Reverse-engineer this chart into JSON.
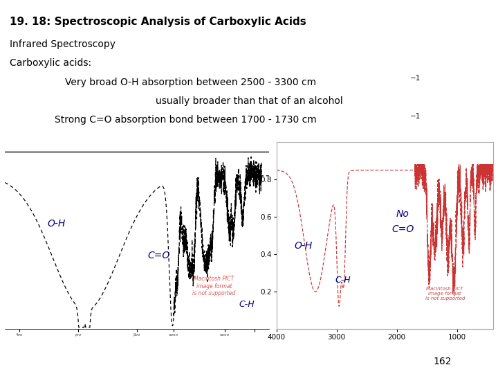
{
  "title_bold": "19. 18: Spectroscopic Analysis of Carboxylic Acids",
  "line2": "Infrared Spectroscopy",
  "line3": "Carboxylic acids:",
  "line4_main": "Very broad O-H absorption between 2500 - 3300 cm",
  "line4_sup": "−1",
  "line5": "usually broader than that of an alcohol",
  "line6_main": "Strong C=O absorption bond between 1700 - 1730 cm",
  "line6_sup": "−1",
  "page_number": "162",
  "bg_color": "#ffffff",
  "text_color": "#000000",
  "blue_color": "#000080",
  "red_color": "#cc3333",
  "left_label_OH": "O-H",
  "left_label_CO": "C=O",
  "left_label_CH": "C-H",
  "right_label_OH": "O-H",
  "right_label_CH": "C-H",
  "right_label_NoCO_1": "No",
  "right_label_NoCO_2": "C=O",
  "note_left": "Macintosh PICT\nimage format\nis not supported",
  "note_right": "Macintosh PICT\nimage format\nis not supported"
}
